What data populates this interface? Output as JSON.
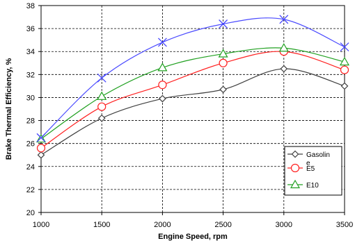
{
  "chart_data": {
    "type": "line",
    "xlabel": "Engine Speed, rpm",
    "ylabel": "Brake Thermal Efficiency, %",
    "x": [
      1000,
      1500,
      2000,
      2500,
      3000,
      3500
    ],
    "xticks": [
      1000,
      1500,
      2000,
      2500,
      3000,
      3500
    ],
    "yticks": [
      20,
      22,
      24,
      26,
      28,
      30,
      32,
      34,
      36,
      38
    ],
    "xlim": [
      1000,
      3500
    ],
    "ylim": [
      20,
      38
    ],
    "grid": true,
    "grid_style": "dashed",
    "legend_position": "lower-right",
    "series": [
      {
        "name": "Gasolin\ne",
        "values": [
          25.0,
          28.2,
          29.9,
          30.7,
          32.5,
          31.0
        ],
        "color": "#404040",
        "marker": "diamond"
      },
      {
        "name": "E5",
        "values": [
          25.6,
          29.2,
          31.1,
          33.0,
          34.0,
          32.4
        ],
        "color": "#ff2020",
        "marker": "circle"
      },
      {
        "name": "E10",
        "values": [
          26.4,
          30.1,
          32.6,
          33.8,
          34.3,
          33.1
        ],
        "color": "#20a020",
        "marker": "triangle"
      },
      {
        "values": [
          26.5,
          31.7,
          34.8,
          36.4,
          36.8,
          34.4
        ],
        "color": "#4a4aff",
        "marker": "x"
      }
    ]
  }
}
